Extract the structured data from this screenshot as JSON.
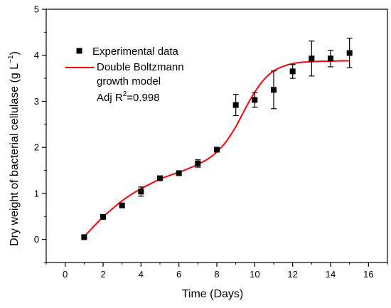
{
  "chart_data": {
    "type": "scatter",
    "xlabel": "Time (Days)",
    "ylabel_main": "Dry weight of bacterial cellulase (g L",
    "ylabel_sup": "−1",
    "ylabel_close": ")",
    "xlim": [
      -1,
      17
    ],
    "ylim": [
      -0.5,
      5
    ],
    "xticks": [
      0,
      2,
      4,
      6,
      8,
      10,
      12,
      14,
      16
    ],
    "yticks": [
      0,
      1,
      2,
      3,
      4,
      5
    ],
    "grid": false,
    "legend_position": "top-left",
    "series": [
      {
        "name": "Experimental data",
        "type": "scatter",
        "color": "#000000",
        "x": [
          1,
          2,
          3,
          4,
          5,
          6,
          7,
          8,
          9,
          10,
          11,
          12,
          13,
          14,
          15
        ],
        "y": [
          0.05,
          0.49,
          0.74,
          1.04,
          1.33,
          1.44,
          1.65,
          1.95,
          2.92,
          3.03,
          3.25,
          3.65,
          3.93,
          3.93,
          4.05
        ],
        "error": [
          0.04,
          0.04,
          0.05,
          0.1,
          0.03,
          0.04,
          0.08,
          0.03,
          0.23,
          0.16,
          0.41,
          0.15,
          0.38,
          0.18,
          0.32
        ]
      },
      {
        "name": "Double Boltzmann growth model",
        "type": "line",
        "color": "#ff0000",
        "x": [
          1,
          1.5,
          2,
          2.5,
          3,
          3.5,
          4,
          4.5,
          5,
          5.5,
          6,
          6.5,
          7,
          7.5,
          8,
          8.5,
          9,
          9.5,
          10,
          10.5,
          11,
          11.5,
          12,
          12.5,
          13,
          13.5,
          14,
          14.5,
          15
        ],
        "y": [
          0.06,
          0.28,
          0.49,
          0.67,
          0.84,
          0.98,
          1.1,
          1.21,
          1.31,
          1.39,
          1.46,
          1.54,
          1.63,
          1.74,
          1.9,
          2.13,
          2.45,
          2.84,
          3.2,
          3.48,
          3.66,
          3.76,
          3.82,
          3.85,
          3.86,
          3.87,
          3.87,
          3.88,
          3.88
        ]
      }
    ],
    "legend": {
      "entries": [
        {
          "label": "Experimental data",
          "marker": "square"
        },
        {
          "label_line1": "Double Boltzmann",
          "label_line2": "growth model",
          "marker": "line"
        }
      ],
      "annotation_prefix": "Adj R",
      "annotation_sup": "2",
      "annotation_suffix": "=0.998"
    }
  }
}
